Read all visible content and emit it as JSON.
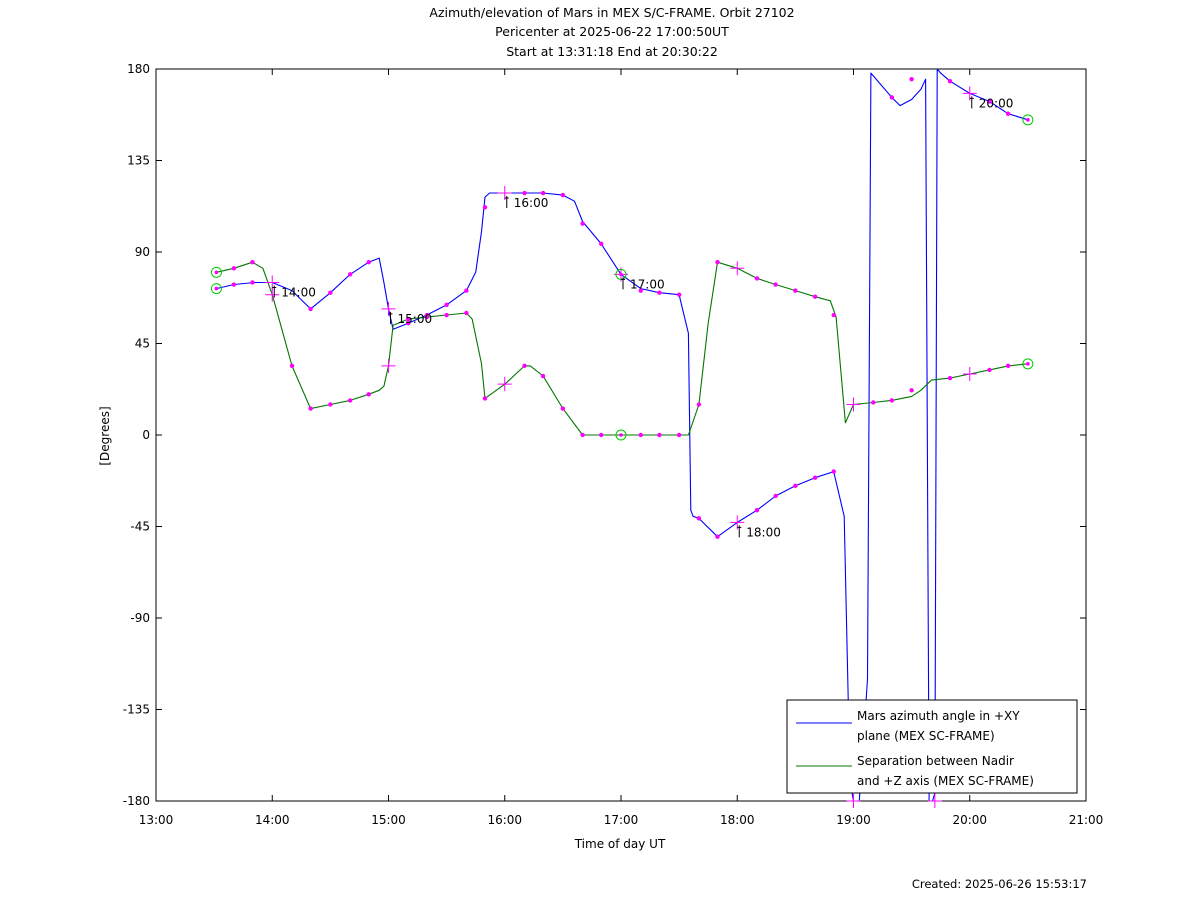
{
  "chart_data": {
    "type": "line",
    "title": [
      "Azimuth/elevation of Mars in MEX S/C-FRAME.  Orbit 27102",
      "Pericenter at 2025-06-22 17:00:50UT",
      "Start at 13:31:18 End at 20:30:22"
    ],
    "xlabel": "Time of day UT",
    "ylabel": "[Degrees]",
    "xlim": [
      13.0,
      21.0
    ],
    "ylim": [
      -180,
      180
    ],
    "x_ticks": [
      13,
      14,
      15,
      16,
      17,
      18,
      19,
      20,
      21
    ],
    "x_tick_labels": [
      "13:00",
      "14:00",
      "15:00",
      "16:00",
      "17:00",
      "18:00",
      "19:00",
      "20:00",
      "21:00"
    ],
    "y_ticks": [
      180,
      135,
      90,
      45,
      0,
      -45,
      -90,
      -135,
      -180
    ],
    "y_tick_labels": [
      "180",
      "135",
      "90",
      "45",
      "0",
      "-45",
      "-90",
      "-135",
      "-180"
    ],
    "grid": false,
    "legend_position": "bottom-right",
    "series": [
      {
        "name": "Mars azimuth angle in +XY plane (MEX SC-FRAME)",
        "legend_lines": [
          "Mars azimuth angle in +XY",
          "plane (MEX SC-FRAME)"
        ],
        "color": "#0000ff",
        "x": [
          13.52,
          13.67,
          13.85,
          14.0,
          14.17,
          14.33,
          14.5,
          14.67,
          14.83,
          14.92,
          14.96,
          15.0,
          15.04,
          15.17,
          15.33,
          15.5,
          15.67,
          15.75,
          15.8,
          15.83,
          15.87,
          16.0,
          16.17,
          16.33,
          16.5,
          16.6,
          16.67,
          16.83,
          17.0,
          17.17,
          17.33,
          17.5,
          17.58,
          17.6,
          17.62,
          17.67,
          17.83,
          18.0,
          18.17,
          18.33,
          18.5,
          18.67,
          18.83,
          18.92,
          18.97,
          19.0,
          19.05,
          19.12,
          19.15,
          19.18,
          19.33,
          19.4,
          19.5,
          19.58,
          19.62,
          19.65,
          19.68,
          19.7,
          19.72,
          19.75,
          19.83,
          20.0,
          20.17,
          20.33,
          20.5
        ],
        "y": [
          72,
          74,
          75,
          75,
          71,
          62,
          70,
          79,
          85,
          87,
          75,
          62,
          52,
          55,
          59,
          64,
          71,
          80,
          100,
          117,
          119,
          119,
          119,
          119,
          118,
          115,
          105,
          94,
          79,
          72,
          70,
          69,
          50,
          -37,
          -40,
          -41,
          -50,
          -43,
          -37,
          -30,
          -25,
          -21,
          -18,
          -40,
          -170,
          -180,
          -180,
          -120,
          178,
          176,
          166,
          162,
          165,
          170,
          175,
          -180,
          -180,
          -176,
          180,
          178,
          174,
          168,
          164,
          158,
          155
        ]
      },
      {
        "name": "Separation between Nadir and +Z axis (MEX SC-FRAME)",
        "legend_lines": [
          "Separation between Nadir",
          "and +Z axis (MEX SC-FRAME)"
        ],
        "color": "#007700",
        "x": [
          13.52,
          13.67,
          13.83,
          13.92,
          14.0,
          14.17,
          14.33,
          14.5,
          14.67,
          14.83,
          14.92,
          14.96,
          15.0,
          15.04,
          15.17,
          15.33,
          15.5,
          15.67,
          15.72,
          15.8,
          15.83,
          16.0,
          16.17,
          16.22,
          16.33,
          16.5,
          16.67,
          16.83,
          17.0,
          17.17,
          17.33,
          17.5,
          17.58,
          17.67,
          17.75,
          17.83,
          18.0,
          18.17,
          18.33,
          18.5,
          18.67,
          18.8,
          18.85,
          18.93,
          19.0,
          19.17,
          19.33,
          19.5,
          19.58,
          19.67,
          19.83,
          20.0,
          20.17,
          20.33,
          20.5
        ],
        "y": [
          80,
          82,
          85,
          82,
          69,
          34,
          13,
          15,
          17,
          20,
          22,
          24,
          34,
          54,
          57,
          58,
          59,
          60,
          57,
          35,
          18,
          25,
          34,
          34,
          29,
          13,
          0,
          0,
          0,
          0,
          0,
          0,
          0,
          15,
          55,
          85,
          82,
          77,
          74,
          71,
          68,
          66,
          58,
          6,
          15,
          16,
          17,
          19,
          22,
          27,
          28,
          30,
          32,
          34,
          35
        ]
      }
    ],
    "marker_color": "#ff00ff",
    "dot_markers": {
      "azimuth": [
        [
          13.67,
          74
        ],
        [
          13.83,
          75
        ],
        [
          14.33,
          62
        ],
        [
          14.5,
          70
        ],
        [
          14.67,
          79
        ],
        [
          14.83,
          85
        ],
        [
          15.17,
          55
        ],
        [
          15.33,
          59
        ],
        [
          15.5,
          64
        ],
        [
          15.67,
          71
        ],
        [
          15.83,
          112
        ],
        [
          16.17,
          119
        ],
        [
          16.33,
          119
        ],
        [
          16.5,
          118
        ],
        [
          16.67,
          104
        ],
        [
          16.83,
          94
        ],
        [
          17.17,
          71
        ],
        [
          17.33,
          70
        ],
        [
          17.5,
          69
        ],
        [
          17.67,
          -41
        ],
        [
          17.83,
          -50
        ],
        [
          18.17,
          -37
        ],
        [
          18.33,
          -30
        ],
        [
          18.5,
          -25
        ],
        [
          18.67,
          -21
        ],
        [
          18.83,
          -18
        ],
        [
          19.33,
          166
        ],
        [
          19.5,
          175
        ],
        [
          19.83,
          174
        ],
        [
          20.17,
          164
        ],
        [
          20.33,
          158
        ]
      ],
      "separation": [
        [
          13.67,
          82
        ],
        [
          13.83,
          85
        ],
        [
          14.17,
          34
        ],
        [
          14.33,
          13
        ],
        [
          14.5,
          15
        ],
        [
          14.67,
          17
        ],
        [
          14.83,
          20
        ],
        [
          15.17,
          57
        ],
        [
          15.33,
          58
        ],
        [
          15.5,
          59
        ],
        [
          15.67,
          60
        ],
        [
          15.83,
          18
        ],
        [
          16.17,
          34
        ],
        [
          16.33,
          29
        ],
        [
          16.5,
          13
        ],
        [
          16.67,
          0
        ],
        [
          16.83,
          0
        ],
        [
          17.17,
          0
        ],
        [
          17.33,
          0
        ],
        [
          17.5,
          0
        ],
        [
          17.67,
          15
        ],
        [
          17.83,
          85
        ],
        [
          18.17,
          77
        ],
        [
          18.33,
          74
        ],
        [
          18.5,
          71
        ],
        [
          18.67,
          68
        ],
        [
          18.83,
          59
        ],
        [
          19.17,
          16
        ],
        [
          19.33,
          17
        ],
        [
          19.5,
          22
        ],
        [
          19.83,
          28
        ],
        [
          20.17,
          32
        ],
        [
          20.33,
          34
        ]
      ]
    },
    "hour_markers": {
      "azimuth": [
        [
          14.0,
          75
        ],
        [
          15.0,
          62
        ],
        [
          16.0,
          119
        ],
        [
          17.0,
          79
        ],
        [
          18.0,
          -43
        ],
        [
          19.0,
          -180
        ],
        [
          19.7,
          -180
        ],
        [
          20.0,
          168
        ]
      ],
      "separation": [
        [
          14.0,
          69
        ],
        [
          15.0,
          34
        ],
        [
          16.0,
          25
        ],
        [
          18.0,
          82
        ],
        [
          19.0,
          15
        ],
        [
          20.0,
          30
        ]
      ]
    },
    "circle_markers": [
      [
        13.52,
        80
      ],
      [
        13.52,
        72
      ],
      [
        17.0,
        79
      ],
      [
        17.0,
        0
      ],
      [
        20.5,
        155
      ],
      [
        20.5,
        35
      ]
    ],
    "time_labels": [
      {
        "text": "14:00",
        "x": 14.0,
        "y": 75
      },
      {
        "text": "15:00",
        "x": 15.0,
        "y": 62
      },
      {
        "text": "16:00",
        "x": 16.0,
        "y": 119
      },
      {
        "text": "17:00",
        "x": 17.0,
        "y": 79
      },
      {
        "text": "18:00",
        "x": 18.0,
        "y": -43
      },
      {
        "text": "20:00",
        "x": 20.0,
        "y": 168
      }
    ]
  },
  "created": "Created: 2025-06-26 15:53:17"
}
